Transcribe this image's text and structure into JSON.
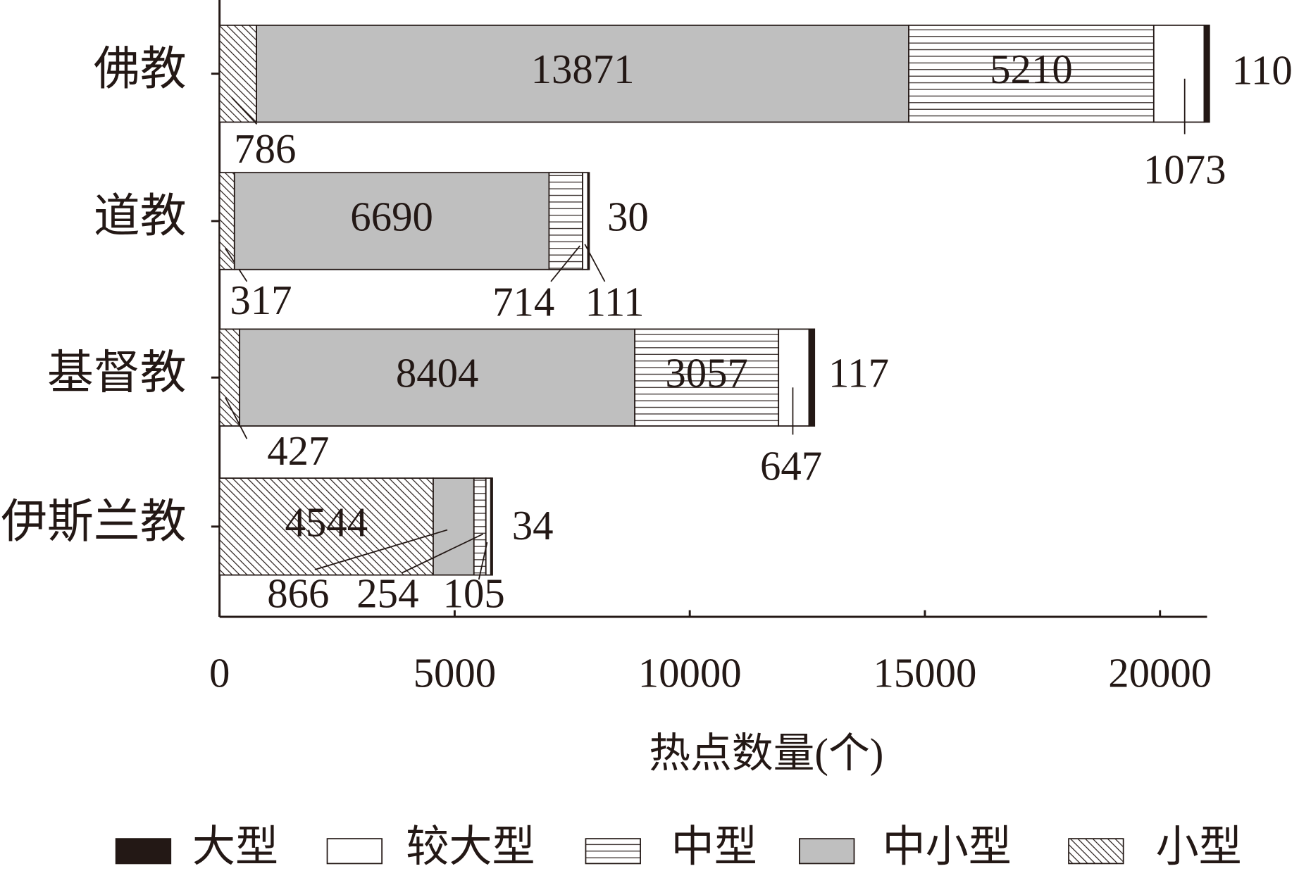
{
  "chart_data": {
    "type": "stacked-barh",
    "categories": [
      "佛教",
      "道教",
      "基督教",
      "伊斯兰教"
    ],
    "series": [
      {
        "name": "大型",
        "color": "#231815",
        "pattern": "none",
        "values": [
          110,
          30,
          117,
          34
        ]
      },
      {
        "name": "较大型",
        "color": "#ffffff",
        "pattern": "none",
        "values": [
          1073,
          111,
          647,
          105
        ]
      },
      {
        "name": "中型",
        "color": "#ffffff",
        "pattern": "horizontal",
        "values": [
          5210,
          714,
          3057,
          254
        ]
      },
      {
        "name": "中小型",
        "color": "#bfbfbf",
        "pattern": "none",
        "values": [
          13871,
          6690,
          8404,
          866
        ]
      },
      {
        "name": "小型",
        "color": "#ffffff",
        "pattern": "diagonal",
        "values": [
          786,
          317,
          427,
          4544
        ]
      }
    ],
    "xlabel": "热点数量(个)",
    "xlim": [
      0,
      21000
    ],
    "xticks": [
      0,
      5000,
      10000,
      15000,
      20000
    ]
  }
}
